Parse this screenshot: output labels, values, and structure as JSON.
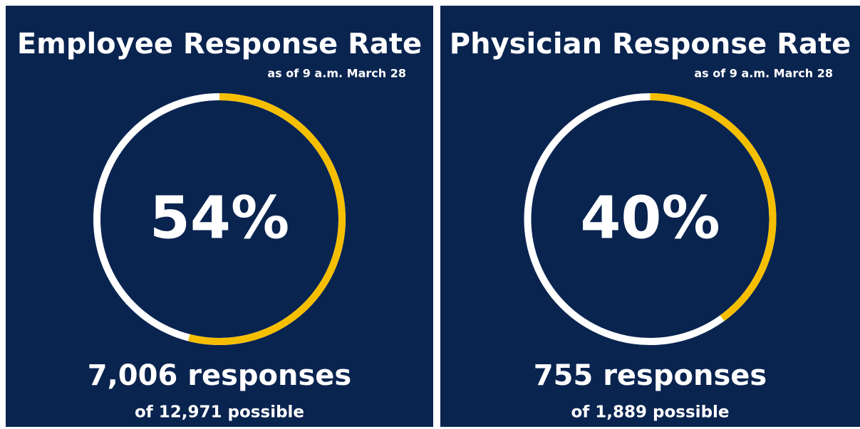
{
  "chart_data": [
    {
      "type": "gauge",
      "title": "Employee Response Rate",
      "subtitle": "as of 9 a.m. March 28",
      "values": [
        54
      ],
      "value_labels": [
        "54%"
      ],
      "ylim": [
        0,
        100
      ],
      "color": "#f5bf00",
      "annotations": [
        "7,006 responses",
        "of 12,971 possible"
      ]
    },
    {
      "type": "gauge",
      "title": "Physician Response Rate",
      "subtitle": "as of 9 a.m. March 28",
      "values": [
        40
      ],
      "value_labels": [
        "40%"
      ],
      "ylim": [
        0,
        100
      ],
      "color": "#f5bf00",
      "annotations": [
        "755 responses",
        "of 1,889 possible"
      ]
    }
  ]
}
